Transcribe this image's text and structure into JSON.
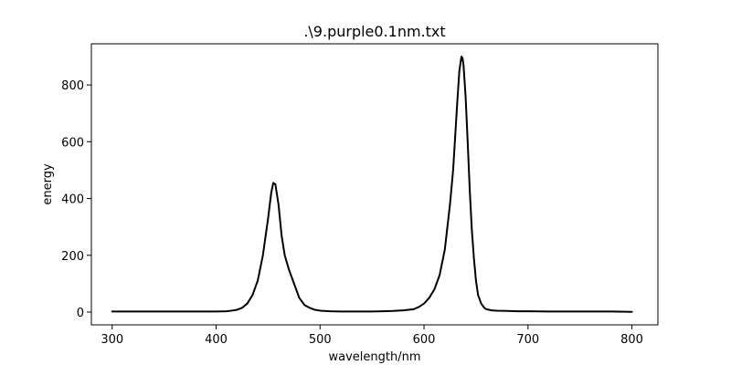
{
  "chart_data": {
    "type": "line",
    "title": ".\\9.purple0.1nm.txt",
    "xlabel": "wavelength/nm",
    "ylabel": "energy",
    "xlim": [
      280,
      825
    ],
    "ylim": [
      -45,
      945
    ],
    "xticks": [
      300,
      400,
      500,
      600,
      700,
      800
    ],
    "yticks": [
      0,
      200,
      400,
      600,
      800
    ],
    "grid": false,
    "legend": "none",
    "line_color": "#000000",
    "series": [
      {
        "x": [
          300,
          320,
          340,
          360,
          380,
          400,
          410,
          415,
          420,
          425,
          430,
          435,
          440,
          445,
          450,
          453,
          455,
          457,
          460,
          463,
          466,
          470,
          475,
          480,
          485,
          490,
          495,
          500,
          510,
          520,
          530,
          540,
          550,
          560,
          570,
          580,
          590,
          595,
          600,
          605,
          610,
          615,
          620,
          625,
          628,
          630,
          632,
          634,
          636,
          637,
          638,
          640,
          642,
          644,
          646,
          648,
          650,
          652,
          655,
          658,
          660,
          665,
          670,
          680,
          690,
          700,
          720,
          740,
          760,
          780,
          800
        ],
        "y": [
          2,
          2,
          2,
          2,
          2,
          2,
          3,
          5,
          8,
          15,
          30,
          60,
          110,
          200,
          330,
          420,
          455,
          450,
          380,
          270,
          200,
          150,
          100,
          50,
          25,
          15,
          8,
          5,
          3,
          2,
          2,
          2,
          2,
          3,
          4,
          6,
          10,
          18,
          30,
          50,
          80,
          130,
          220,
          380,
          500,
          620,
          740,
          850,
          900,
          895,
          870,
          760,
          600,
          430,
          290,
          190,
          110,
          60,
          30,
          15,
          10,
          6,
          5,
          4,
          3,
          3,
          2,
          2,
          2,
          2,
          1
        ]
      }
    ]
  }
}
